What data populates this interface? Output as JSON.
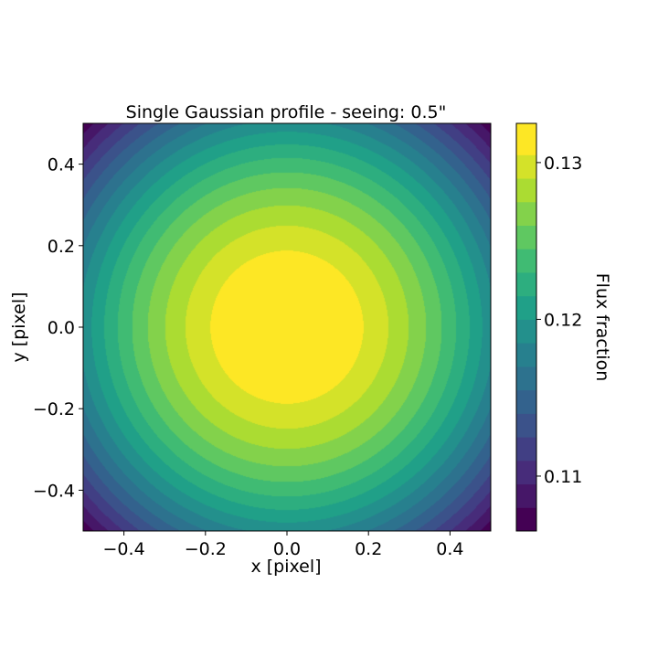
{
  "chart_data": {
    "type": "contourf",
    "title": "Single Gaussian profile - seeing: 0.5\"",
    "xlabel": "x [pixel]",
    "ylabel": "y [pixel]",
    "xlim": [
      -0.5,
      0.5
    ],
    "ylim": [
      -0.5,
      0.5
    ],
    "x_ticks": [
      -0.4,
      -0.2,
      0.0,
      0.2,
      0.4
    ],
    "x_tick_labels": [
      "−0.4",
      "−0.2",
      "0.0",
      "0.2",
      "0.4"
    ],
    "y_ticks": [
      -0.4,
      -0.2,
      0.0,
      0.2,
      0.4
    ],
    "y_tick_labels": [
      "−0.4",
      "−0.2",
      "0.0",
      "0.2",
      "0.4"
    ],
    "grid": false,
    "colormap": "viridis",
    "profile": "gaussian",
    "center": [
      0.0,
      0.0
    ],
    "peak_value": 0.1325,
    "corner_value": 0.1068,
    "colorbar": {
      "label": "Flux fraction",
      "range": [
        0.1065,
        0.1325
      ],
      "levels": [
        0.1065,
        0.108,
        0.1095,
        0.111,
        0.1125,
        0.114,
        0.1155,
        0.117,
        0.1185,
        0.12,
        0.1215,
        0.123,
        0.1245,
        0.126,
        0.1275,
        0.129,
        0.1305,
        0.1325
      ],
      "ticks": [
        0.11,
        0.12,
        0.13
      ],
      "tick_labels": [
        "0.11",
        "0.12",
        "0.13"
      ]
    }
  }
}
